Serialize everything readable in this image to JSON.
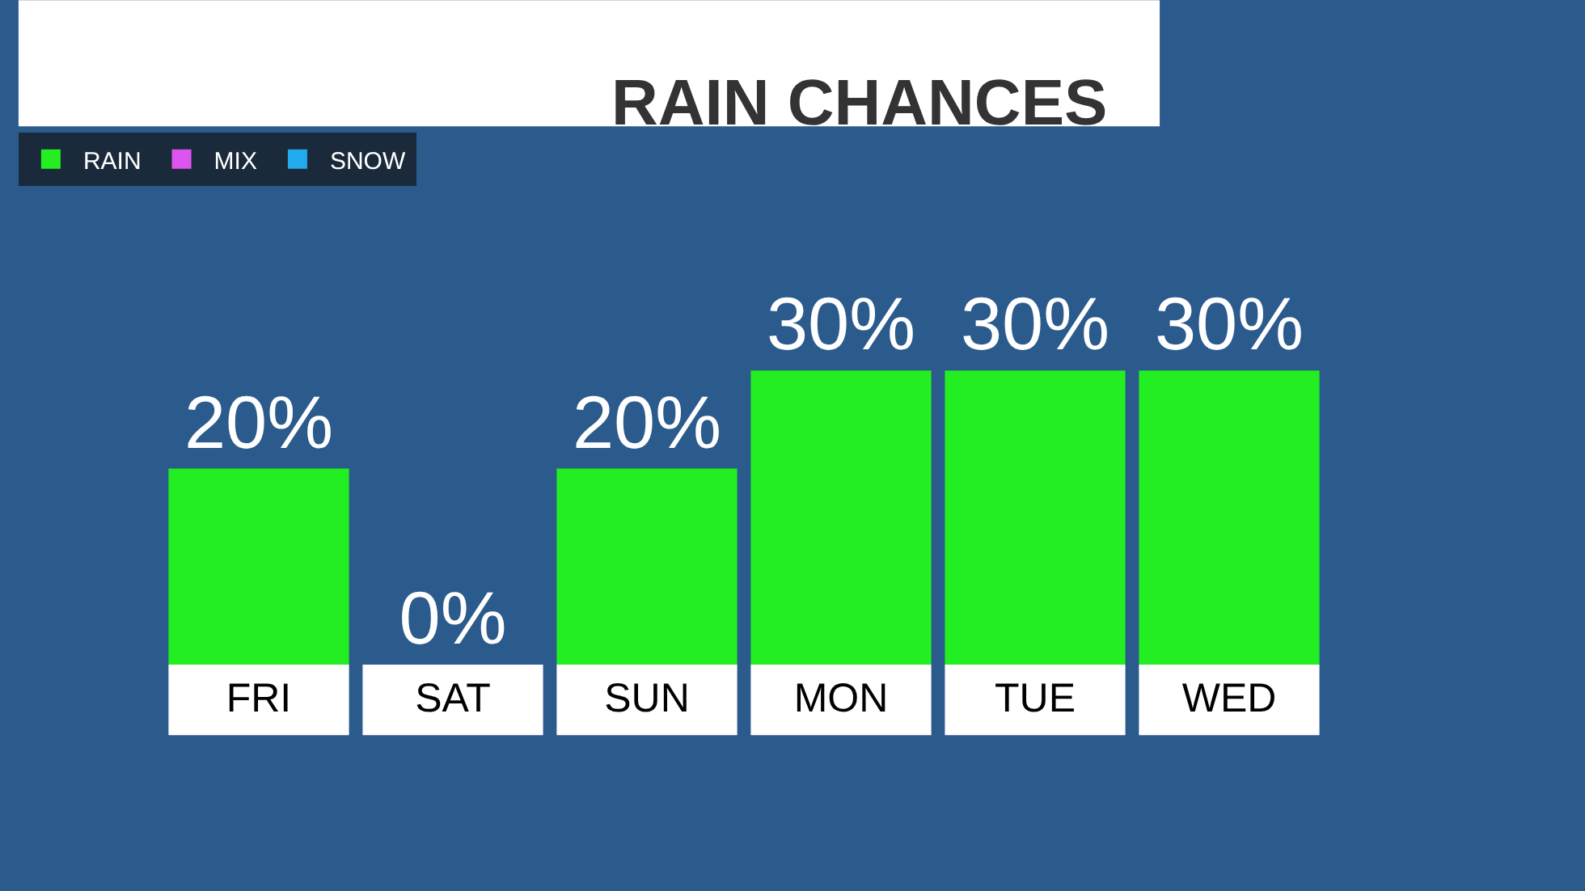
{
  "chart_data": {
    "type": "bar",
    "title": "RAIN CHANCES",
    "categories": [
      "FRI",
      "SAT",
      "SUN",
      "MON",
      "TUE",
      "WED"
    ],
    "series": [
      {
        "name": "RAIN",
        "color": "#22ee22",
        "values": [
          20,
          0,
          20,
          30,
          30,
          30
        ],
        "value_labels": [
          "20%",
          "0%",
          "20%",
          "30%",
          "30%",
          "30%"
        ]
      },
      {
        "name": "MIX",
        "color": "#dd55ee",
        "values": [
          null,
          null,
          null,
          null,
          null,
          null
        ]
      },
      {
        "name": "SNOW",
        "color": "#22aaee",
        "values": [
          null,
          null,
          null,
          null,
          null,
          null
        ]
      }
    ],
    "legend": "top left",
    "grid": false
  }
}
